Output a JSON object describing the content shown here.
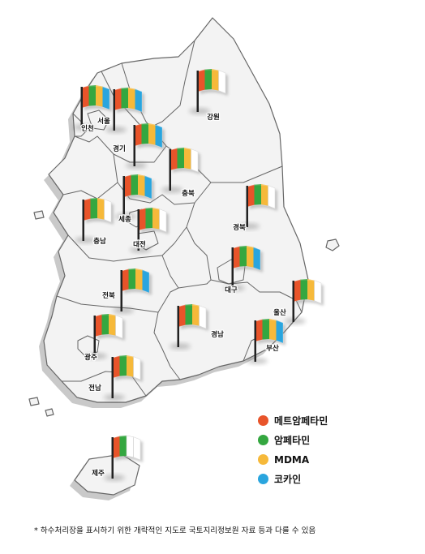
{
  "colors": {
    "land_fill": "#f3f3f3",
    "land_shadow": "#c9c9c9",
    "border": "#666666",
    "flagpole": "#222222"
  },
  "legend": [
    {
      "label": "메트암페타민",
      "color": "#e8542a"
    },
    {
      "label": "암페타민",
      "color": "#34a740"
    },
    {
      "label": "MDMA",
      "color": "#f6b93a"
    },
    {
      "label": "코카인",
      "color": "#2aa5de"
    }
  ],
  "regions": [
    {
      "key": "incheon",
      "label": "인천",
      "flag": [
        "#e8542a",
        "#34a740",
        "#f6b93a",
        "#2aa5de"
      ]
    },
    {
      "key": "seoul",
      "label": "서울",
      "flag": [
        "#e8542a",
        "#34a740",
        "#f6b93a",
        "#2aa5de"
      ]
    },
    {
      "key": "gyeonggi",
      "label": "경기",
      "flag": [
        "#e8542a",
        "#34a740",
        "#f6b93a",
        "#2aa5de"
      ]
    },
    {
      "key": "gangwon",
      "label": "강원",
      "flag": [
        "#e8542a",
        "#34a740",
        "#f6b93a",
        "#ffffff"
      ]
    },
    {
      "key": "chungbuk",
      "label": "충북",
      "flag": [
        "#e8542a",
        "#34a740",
        "#f6b93a",
        "#ffffff"
      ]
    },
    {
      "key": "sejong",
      "label": "세종",
      "flag": [
        "#e8542a",
        "#34a740",
        "#f6b93a",
        "#2aa5de"
      ]
    },
    {
      "key": "chungnam",
      "label": "충남",
      "flag": [
        "#e8542a",
        "#34a740",
        "#f6b93a",
        "#ffffff"
      ]
    },
    {
      "key": "daejeon",
      "label": "대전",
      "flag": [
        "#e8542a",
        "#34a740",
        "#f6b93a",
        "#ffffff"
      ]
    },
    {
      "key": "gyeongbuk",
      "label": "경북",
      "flag": [
        "#e8542a",
        "#34a740",
        "#f6b93a",
        "#ffffff"
      ]
    },
    {
      "key": "daegu",
      "label": "대구",
      "flag": [
        "#e8542a",
        "#34a740",
        "#f6b93a",
        "#2aa5de"
      ]
    },
    {
      "key": "jeonbuk",
      "label": "전북",
      "flag": [
        "#e8542a",
        "#34a740",
        "#f6b93a",
        "#2aa5de"
      ]
    },
    {
      "key": "ulsan",
      "label": "울산",
      "flag": [
        "#e8542a",
        "#34a740",
        "#f6b93a",
        "#ffffff"
      ]
    },
    {
      "key": "gyeongnam",
      "label": "경남",
      "flag": [
        "#e8542a",
        "#34a740",
        "#f6b93a",
        "#ffffff"
      ]
    },
    {
      "key": "gwangju",
      "label": "광주",
      "flag": [
        "#e8542a",
        "#34a740",
        "#f6b93a",
        "#ffffff"
      ]
    },
    {
      "key": "busan",
      "label": "부산",
      "flag": [
        "#e8542a",
        "#34a740",
        "#f6b93a",
        "#2aa5de"
      ]
    },
    {
      "key": "jeonnam",
      "label": "전남",
      "flag": [
        "#e8542a",
        "#34a740",
        "#f6b93a",
        "#ffffff"
      ]
    },
    {
      "key": "jeju",
      "label": "제주",
      "flag": [
        "#e8542a",
        "#34a740",
        "#ffffff",
        "#ffffff"
      ]
    }
  ],
  "footnote": "* 하수처리장을 표시하기 위한 개략적인 지도로 국토지리정보원 자료 등과 다를 수 있음"
}
